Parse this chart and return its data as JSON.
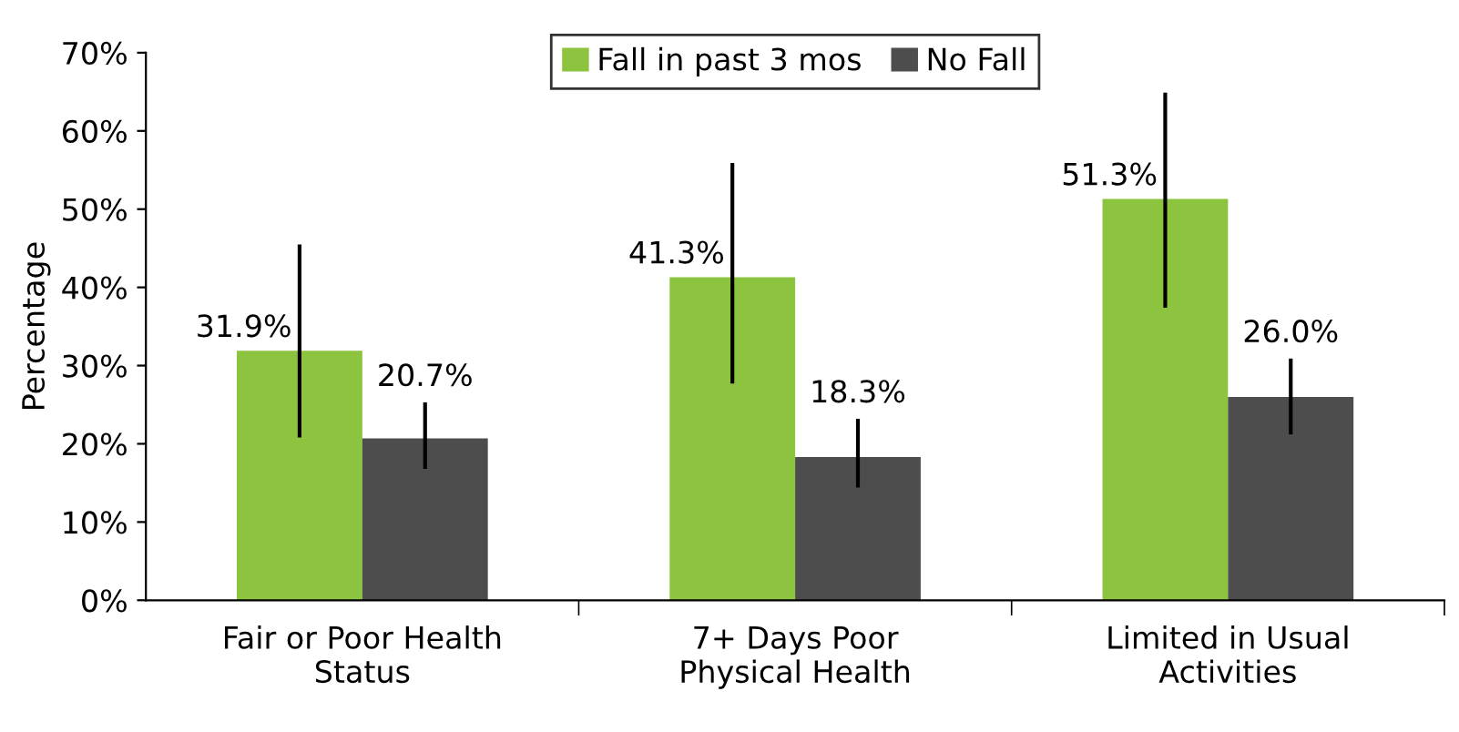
{
  "chart_data": {
    "type": "bar",
    "ylabel": "Percentage",
    "categories": [
      "Fair or Poor Health\nStatus",
      "7+ Days Poor\nPhysical Health",
      "Limited in Usual\nActivities"
    ],
    "series": [
      {
        "name": "Fall in past 3 mos",
        "color": "#8cc43f",
        "values": [
          31.9,
          41.3,
          51.3
        ],
        "errors": [
          [
            20.8,
            45.5
          ],
          [
            27.7,
            55.9
          ],
          [
            37.4,
            64.9
          ]
        ],
        "value_labels": [
          "31.9%",
          "41.3%",
          "51.3%"
        ]
      },
      {
        "name": "No Fall",
        "color": "#4d4d4d",
        "values": [
          20.7,
          18.3,
          26.0
        ],
        "errors": [
          [
            16.8,
            25.3
          ],
          [
            14.4,
            23.2
          ],
          [
            21.2,
            30.9
          ]
        ],
        "value_labels": [
          "20.7%",
          "18.3%",
          "26.0%"
        ]
      }
    ],
    "ylim": [
      0,
      70
    ],
    "yticks": [
      {
        "value": 0,
        "label": "0%"
      },
      {
        "value": 10,
        "label": "10%"
      },
      {
        "value": 20,
        "label": "20%"
      },
      {
        "value": 30,
        "label": "30%"
      },
      {
        "value": 40,
        "label": "40%"
      },
      {
        "value": 50,
        "label": "50%"
      },
      {
        "value": 60,
        "label": "60%"
      },
      {
        "value": 70,
        "label": "70%"
      }
    ],
    "grid": false,
    "legend": "top"
  }
}
